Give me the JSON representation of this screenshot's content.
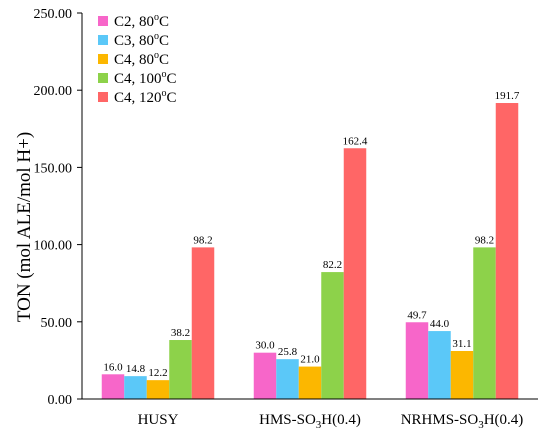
{
  "chart_data": {
    "type": "bar",
    "ylabel": "TON (mol ALE/mol H+)",
    "ylim": [
      0,
      250
    ],
    "yticks": [
      "0.00",
      "50.00",
      "100.00",
      "150.00",
      "200.00",
      "250.00"
    ],
    "ytick_values": [
      0,
      50,
      100,
      150,
      200,
      250
    ],
    "categories": [
      {
        "label": "HUSY",
        "main": "HUSY",
        "sub": "",
        "tail": ""
      },
      {
        "label": "HMS-SO3H(0.4)",
        "main": "HMS-SO",
        "sub": "3",
        "tail": "H(0.4)"
      },
      {
        "label": "NRHMS-SO3H(0.4)",
        "main": "NRHMS-SO",
        "sub": "3",
        "tail": "H(0.4)"
      }
    ],
    "series": [
      {
        "name": "C2, 80°C",
        "legend_main": "C2, 80",
        "legend_sup": "o",
        "legend_tail": "C",
        "color": "#F766C9",
        "values": [
          16.0,
          30.0,
          49.7
        ],
        "labels": [
          "16.0",
          "30.0",
          "49.7"
        ]
      },
      {
        "name": "C3, 80°C",
        "legend_main": "C3, 80",
        "legend_sup": "o",
        "legend_tail": "C",
        "color": "#5BC8F8",
        "values": [
          14.8,
          25.8,
          44.0
        ],
        "labels": [
          "14.8",
          "25.8",
          "44.0"
        ]
      },
      {
        "name": "C4, 80°C",
        "legend_main": "C4, 80",
        "legend_sup": "o",
        "legend_tail": "C",
        "color": "#FCB700",
        "values": [
          12.2,
          21.0,
          31.1
        ],
        "labels": [
          "12.2",
          "21.0",
          "31.1"
        ]
      },
      {
        "name": "C4, 100°C",
        "legend_main": "C4, 100",
        "legend_sup": "o",
        "legend_tail": "C",
        "color": "#8DD24A",
        "values": [
          38.2,
          82.2,
          98.2
        ],
        "labels": [
          "38.2",
          "82.2",
          "98.2"
        ]
      },
      {
        "name": "C4, 120°C",
        "legend_main": "C4, 120",
        "legend_sup": "o",
        "legend_tail": "C",
        "color": "#FF6666",
        "values": [
          98.2,
          162.4,
          191.7
        ],
        "labels": [
          "98.2",
          "162.4",
          "191.7"
        ]
      }
    ],
    "legend_position": "top-left",
    "grid": false
  }
}
